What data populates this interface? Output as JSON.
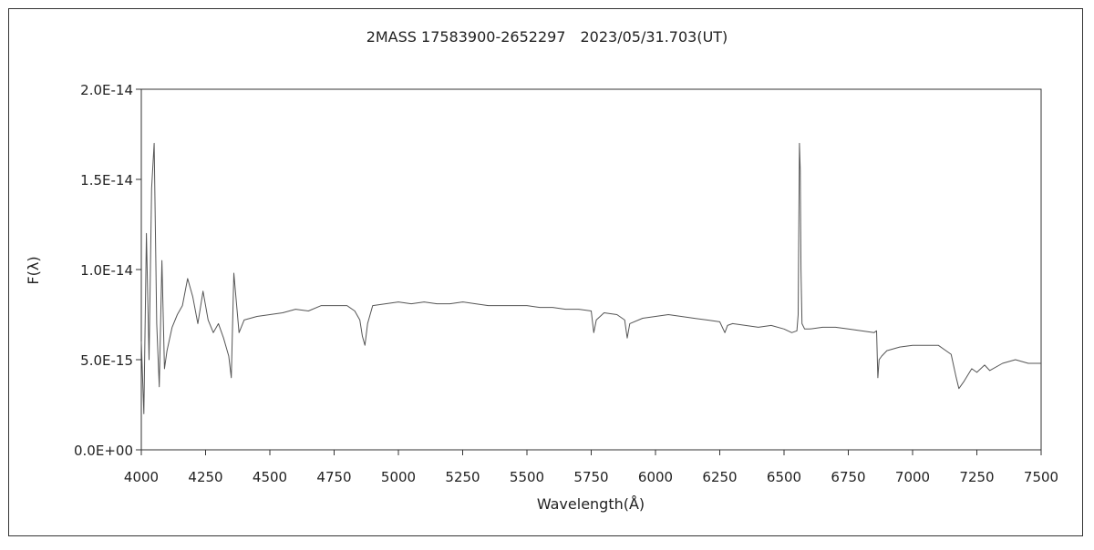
{
  "chart_data": {
    "type": "line",
    "title": "2MASS 17583900-2652297　2023/05/31.703(UT)",
    "xlabel": "Wavelength(Å)",
    "ylabel": "F(λ)",
    "xlim": [
      4000,
      7500
    ],
    "ylim": [
      0,
      2e-14
    ],
    "x_ticks": [
      4000,
      4250,
      4500,
      4750,
      5000,
      5250,
      5500,
      5750,
      6000,
      6250,
      6500,
      6750,
      7000,
      7250,
      7500
    ],
    "x_tick_labels": [
      "4000",
      "4250",
      "4500",
      "4750",
      "5000",
      "5250",
      "5500",
      "5750",
      "6000",
      "6250",
      "6500",
      "6750",
      "7000",
      "7250",
      "7500"
    ],
    "y_ticks": [
      0,
      5e-15,
      1e-14,
      1.5e-14,
      2e-14
    ],
    "y_tick_labels": [
      "0.0E+00",
      "5.0E-15",
      "1.0E-14",
      "1.5E-14",
      "2.0E-14"
    ],
    "grid": false,
    "legend": "none",
    "line_color": "#555555",
    "series": [
      {
        "x": [
          4000,
          4010,
          4020,
          4030,
          4040,
          4050,
          4060,
          4070,
          4080,
          4090,
          4100,
          4120,
          4140,
          4160,
          4180,
          4200,
          4220,
          4240,
          4260,
          4280,
          4300,
          4320,
          4340,
          4350,
          4360,
          4380,
          4400,
          4450,
          4500,
          4550,
          4600,
          4650,
          4700,
          4750,
          4800,
          4830,
          4850,
          4860,
          4870,
          4880,
          4900,
          4950,
          5000,
          5050,
          5100,
          5150,
          5200,
          5250,
          5300,
          5350,
          5400,
          5450,
          5500,
          5550,
          5600,
          5650,
          5700,
          5750,
          5760,
          5770,
          5800,
          5850,
          5880,
          5890,
          5900,
          5950,
          6000,
          6050,
          6100,
          6150,
          6200,
          6250,
          6270,
          6280,
          6300,
          6350,
          6400,
          6450,
          6500,
          6530,
          6550,
          6555,
          6560,
          6563,
          6566,
          6570,
          6580,
          6600,
          6650,
          6700,
          6750,
          6800,
          6850,
          6860,
          6865,
          6870,
          6880,
          6900,
          6950,
          7000,
          7050,
          7100,
          7150,
          7170,
          7180,
          7200,
          7230,
          7250,
          7280,
          7300,
          7350,
          7400,
          7450,
          7500
        ],
        "y": [
          6e-15,
          2e-15,
          1.2e-14,
          5e-15,
          1.45e-14,
          1.7e-14,
          7e-15,
          3.5e-15,
          1.05e-14,
          4.5e-15,
          5.5e-15,
          6.8e-15,
          7.5e-15,
          8e-15,
          9.5e-15,
          8.5e-15,
          7e-15,
          8.8e-15,
          7.2e-15,
          6.5e-15,
          7e-15,
          6.2e-15,
          5.2e-15,
          4e-15,
          9.8e-15,
          6.5e-15,
          7.2e-15,
          7.4e-15,
          7.5e-15,
          7.6e-15,
          7.8e-15,
          7.7e-15,
          8e-15,
          8e-15,
          8e-15,
          7.7e-15,
          7.2e-15,
          6.3e-15,
          5.8e-15,
          7e-15,
          8e-15,
          8.1e-15,
          8.2e-15,
          8.1e-15,
          8.2e-15,
          8.1e-15,
          8.1e-15,
          8.2e-15,
          8.1e-15,
          8e-15,
          8e-15,
          8e-15,
          8e-15,
          7.9e-15,
          7.9e-15,
          7.8e-15,
          7.8e-15,
          7.7e-15,
          6.5e-15,
          7.2e-15,
          7.6e-15,
          7.5e-15,
          7.2e-15,
          6.2e-15,
          7e-15,
          7.3e-15,
          7.4e-15,
          7.5e-15,
          7.4e-15,
          7.3e-15,
          7.2e-15,
          7.1e-15,
          6.5e-15,
          6.9e-15,
          7e-15,
          6.9e-15,
          6.8e-15,
          6.9e-15,
          6.7e-15,
          6.5e-15,
          6.6e-15,
          7.5e-15,
          1.7e-14,
          1.55e-14,
          1e-14,
          7e-15,
          6.7e-15,
          6.7e-15,
          6.8e-15,
          6.8e-15,
          6.7e-15,
          6.6e-15,
          6.5e-15,
          6.6e-15,
          4e-15,
          5e-15,
          5.2e-15,
          5.5e-15,
          5.7e-15,
          5.8e-15,
          5.8e-15,
          5.8e-15,
          5.3e-15,
          4e-15,
          3.4e-15,
          3.8e-15,
          4.5e-15,
          4.3e-15,
          4.7e-15,
          4.4e-15,
          4.8e-15,
          5e-15,
          4.8e-15,
          4.8e-15
        ]
      }
    ]
  }
}
